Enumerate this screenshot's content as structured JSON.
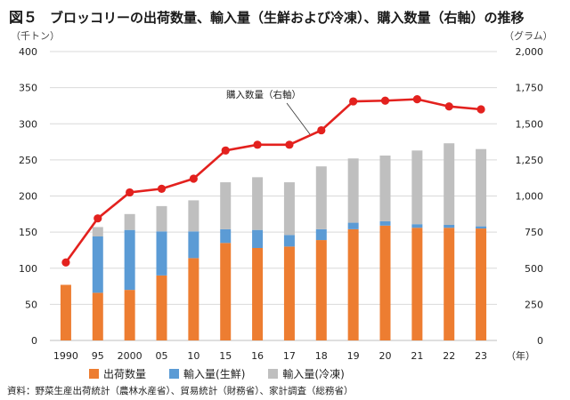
{
  "title": {
    "figure_label": "図５",
    "text": "ブロッコリーの出荷数量、輸入量（生鮮および冷凍）、購入数量（右軸）の推移"
  },
  "colors": {
    "shipment": "#ed7d31",
    "import_fresh": "#5b9bd5",
    "import_frozen": "#bfbfbf",
    "purchase": "#e3211e",
    "grid": "#d9d9d9"
  },
  "source": "資料：野菜生産出荷統計（農林水産省）、貿易統計（財務省）、家計調査（総務省）",
  "chart_data": {
    "type": "bar",
    "stacked": true,
    "title": "ブロッコリーの出荷数量、輸入量（生鮮および冷凍）、購入数量（右軸）の推移",
    "categories": [
      "1990",
      "95",
      "2000",
      "05",
      "10",
      "15",
      "16",
      "17",
      "18",
      "19",
      "20",
      "21",
      "22",
      "23"
    ],
    "x_unit": "（年）",
    "y_left": {
      "unit": "（千トン）",
      "range": [
        0,
        400
      ],
      "ticks": [
        "0",
        "50",
        "100",
        "150",
        "200",
        "250",
        "300",
        "350",
        "400"
      ]
    },
    "y_right": {
      "unit": "（グラム）",
      "range": [
        0,
        2000
      ],
      "ticks": [
        "0",
        "250",
        "500",
        "750",
        "1,000",
        "1,250",
        "1,500",
        "1,750",
        "2,000"
      ]
    },
    "series": [
      {
        "name": "出荷数量",
        "type": "bar",
        "axis": "left",
        "values": [
          77,
          66,
          70,
          90,
          114,
          135,
          128,
          130,
          139,
          154,
          159,
          156,
          156,
          155
        ]
      },
      {
        "name": "輸入量(生鮮)",
        "type": "bar",
        "axis": "left",
        "values": [
          0,
          78,
          83,
          61,
          37,
          19,
          25,
          16,
          15,
          9,
          6,
          5,
          4,
          3
        ]
      },
      {
        "name": "輸入量(冷凍)",
        "type": "bar",
        "axis": "left",
        "values": [
          0,
          13,
          22,
          35,
          43,
          65,
          73,
          73,
          87,
          89,
          91,
          102,
          113,
          107
        ]
      },
      {
        "name": "購入数量（右軸）",
        "type": "line",
        "axis": "right",
        "values": [
          540,
          845,
          1025,
          1050,
          1120,
          1315,
          1355,
          1355,
          1455,
          1655,
          1660,
          1670,
          1620,
          1600
        ]
      }
    ],
    "annotation": "購入数量（右軸）",
    "legend": [
      "出荷数量",
      "輸入量(生鮮)",
      "輸入量(冷凍)"
    ],
    "legend_position": "bottom",
    "grid": true
  }
}
